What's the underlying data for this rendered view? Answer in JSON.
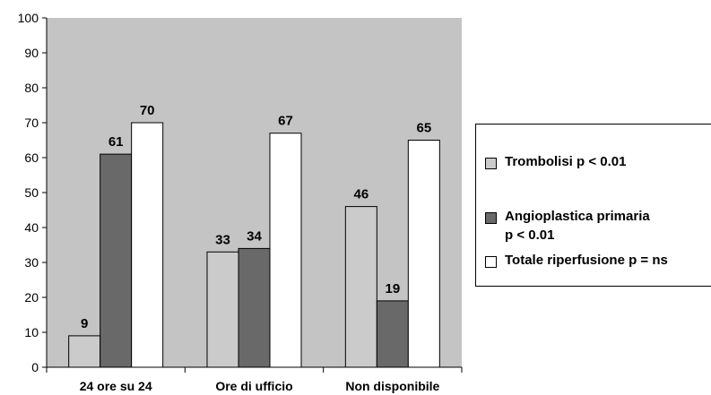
{
  "chart_data": {
    "type": "bar",
    "categories": [
      "24 ore su 24",
      "Ore di ufficio",
      "Non disponibile"
    ],
    "series": [
      {
        "name": "Trombolisi p < 0.01",
        "color": "#cbcbcb",
        "values": [
          9,
          33,
          46
        ]
      },
      {
        "name": "Angioplastica primaria\np < 0.01",
        "color": "#696969",
        "values": [
          61,
          34,
          19
        ]
      },
      {
        "name": "Totale riperfusione p = ns",
        "color": "#ffffff",
        "values": [
          70,
          67,
          65
        ]
      }
    ],
    "ylim": [
      0,
      100
    ],
    "yticks": [
      0,
      10,
      20,
      30,
      40,
      50,
      60,
      70,
      80,
      90,
      100
    ],
    "plot_background": "#c4c4c4",
    "legend": "right"
  }
}
